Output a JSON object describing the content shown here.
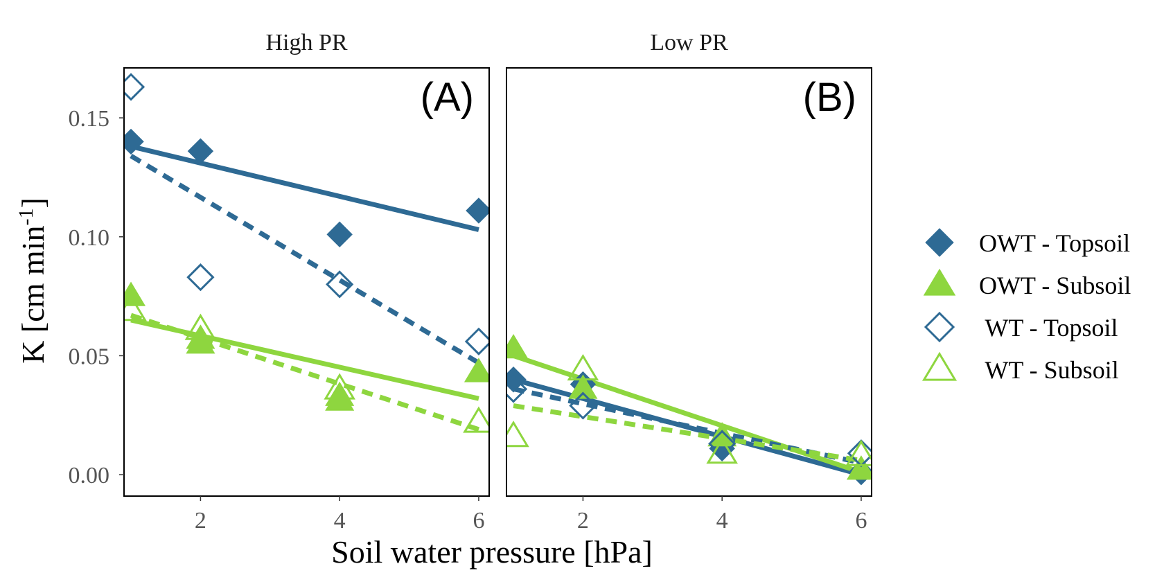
{
  "chart_data": {
    "type": "scatter",
    "xlabel": "Soil water pressure [hPa]",
    "ylabel": "K [cm min",
    "ylabel_sup": "-1",
    "ylabel_end": "]",
    "xlim": [
      0.9,
      6.15
    ],
    "ylim": [
      -0.009,
      0.171
    ],
    "x_ticks": [
      2,
      4,
      6
    ],
    "x_tick_labels": [
      "2",
      "4",
      "6"
    ],
    "y_ticks": [
      0.0,
      0.05,
      0.1,
      0.15
    ],
    "y_tick_labels": [
      "0.00",
      "0.05",
      "0.10",
      "0.15"
    ],
    "grid": false,
    "legend_position": "right",
    "colors": {
      "blue": "#2e6a94",
      "green": "#8ed63f"
    },
    "legend": [
      {
        "label": "OWT - Topsoil",
        "marker": "diamond-filled",
        "color": "#2e6a94"
      },
      {
        "label": "OWT - Subsoil",
        "marker": "triangle-filled",
        "color": "#8ed63f"
      },
      {
        "label": " WT - Topsoil",
        "marker": "diamond-open",
        "color": "#2e6a94"
      },
      {
        "label": " WT - Subsoil",
        "marker": "triangle-open",
        "color": "#8ed63f"
      }
    ],
    "panels": [
      {
        "strip": "High PR",
        "tag": "(A)",
        "series": [
          {
            "name": "OWT - Topsoil",
            "marker": "diamond-filled",
            "color": "#2e6a94",
            "linestyle": "solid",
            "x": [
              1,
              2,
              4,
              6
            ],
            "y": [
              0.14,
              0.136,
              0.101,
              0.111
            ],
            "fit": [
              [
                1,
                0.138
              ],
              [
                6,
                0.103
              ]
            ]
          },
          {
            "name": "OWT - Subsoil",
            "marker": "triangle-filled",
            "color": "#8ed63f",
            "linestyle": "solid",
            "x": [
              1,
              2,
              2,
              4,
              4,
              6
            ],
            "y": [
              0.075,
              0.057,
              0.055,
              0.033,
              0.031,
              0.043
            ],
            "fit": [
              [
                1,
                0.065
              ],
              [
                6,
                0.032
              ]
            ]
          },
          {
            "name": " WT - Topsoil",
            "marker": "diamond-open",
            "color": "#2e6a94",
            "linestyle": "dashed",
            "x": [
              1,
              2,
              4,
              6
            ],
            "y": [
              0.163,
              0.083,
              0.08,
              0.056
            ],
            "fit": [
              [
                1,
                0.134
              ],
              [
                6,
                0.047
              ]
            ]
          },
          {
            "name": " WT - Subsoil",
            "marker": "triangle-open",
            "color": "#8ed63f",
            "linestyle": "dashed",
            "x": [
              1,
              2,
              4,
              6
            ],
            "y": [
              0.069,
              0.061,
              0.036,
              0.022
            ],
            "fit": [
              [
                1,
                0.067
              ],
              [
                6,
                0.019
              ]
            ]
          }
        ]
      },
      {
        "strip": "Low PR",
        "tag": "(B)",
        "series": [
          {
            "name": "OWT - Topsoil",
            "marker": "diamond-filled",
            "color": "#2e6a94",
            "linestyle": "solid",
            "x": [
              1,
              2,
              4,
              6
            ],
            "y": [
              0.04,
              0.038,
              0.011,
              0.001
            ],
            "fit": [
              [
                1,
                0.04
              ],
              [
                6,
                0.0
              ]
            ]
          },
          {
            "name": "OWT - Subsoil",
            "marker": "triangle-filled",
            "color": "#8ed63f",
            "linestyle": "solid",
            "x": [
              1,
              2,
              4,
              6
            ],
            "y": [
              0.053,
              0.036,
              0.016,
              0.002
            ],
            "fit": [
              [
                1,
                0.05
              ],
              [
                6,
                0.001
              ]
            ]
          },
          {
            "name": " WT - Topsoil",
            "marker": "diamond-open",
            "color": "#2e6a94",
            "linestyle": "dashed",
            "x": [
              1,
              2,
              4,
              6
            ],
            "y": [
              0.036,
              0.029,
              0.013,
              0.009
            ],
            "fit": [
              [
                1,
                0.036
              ],
              [
                6,
                0.005
              ]
            ]
          },
          {
            "name": " WT - Subsoil",
            "marker": "triangle-open",
            "color": "#8ed63f",
            "linestyle": "dashed",
            "x": [
              1,
              2,
              4,
              6
            ],
            "y": [
              0.016,
              0.044,
              0.009,
              0.008
            ],
            "fit": [
              [
                1,
                0.029
              ],
              [
                6,
                0.006
              ]
            ]
          }
        ]
      }
    ]
  }
}
